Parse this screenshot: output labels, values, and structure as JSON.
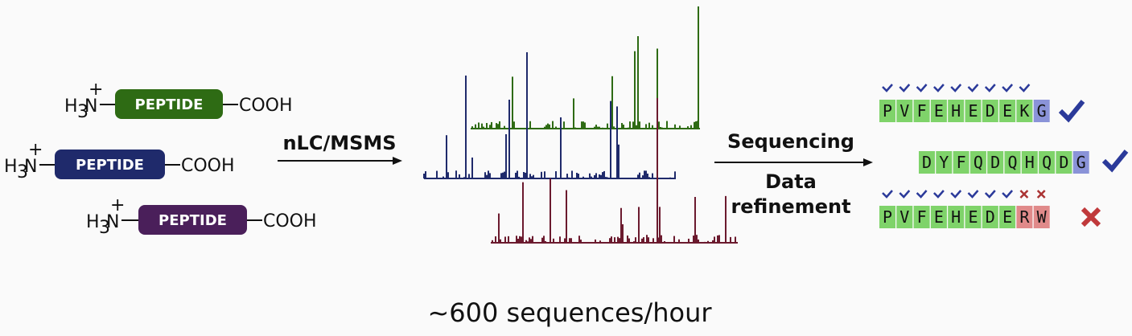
{
  "peptides": [
    {
      "amine_h": "H",
      "amine_sub": "3",
      "amine_n": "N",
      "charge": "+",
      "label": "PEPTIDE",
      "terminus": "COOH"
    },
    {
      "amine_h": "H",
      "amine_sub": "3",
      "amine_n": "N",
      "charge": "+",
      "label": "PEPTIDE",
      "terminus": "COOH"
    },
    {
      "amine_h": "H",
      "amine_sub": "3",
      "amine_n": "N",
      "charge": "+",
      "label": "PEPTIDE",
      "terminus": "COOH"
    }
  ],
  "method": "nLC/MSMS",
  "processing": {
    "line1": "Sequencing",
    "line2": "Data",
    "line3": "refinement"
  },
  "sequences": [
    {
      "letters": [
        "P",
        "V",
        "F",
        "E",
        "H",
        "E",
        "D",
        "E",
        "K",
        "G"
      ]
    },
    {
      "letters": [
        "D",
        "Y",
        "F",
        "Q",
        "D",
        "Q",
        "H",
        "Q",
        "D",
        "G"
      ]
    },
    {
      "letters": [
        "P",
        "V",
        "F",
        "E",
        "H",
        "E",
        "D",
        "E",
        "R",
        "W"
      ]
    }
  ],
  "throughput": "~600 sequences/hour"
}
